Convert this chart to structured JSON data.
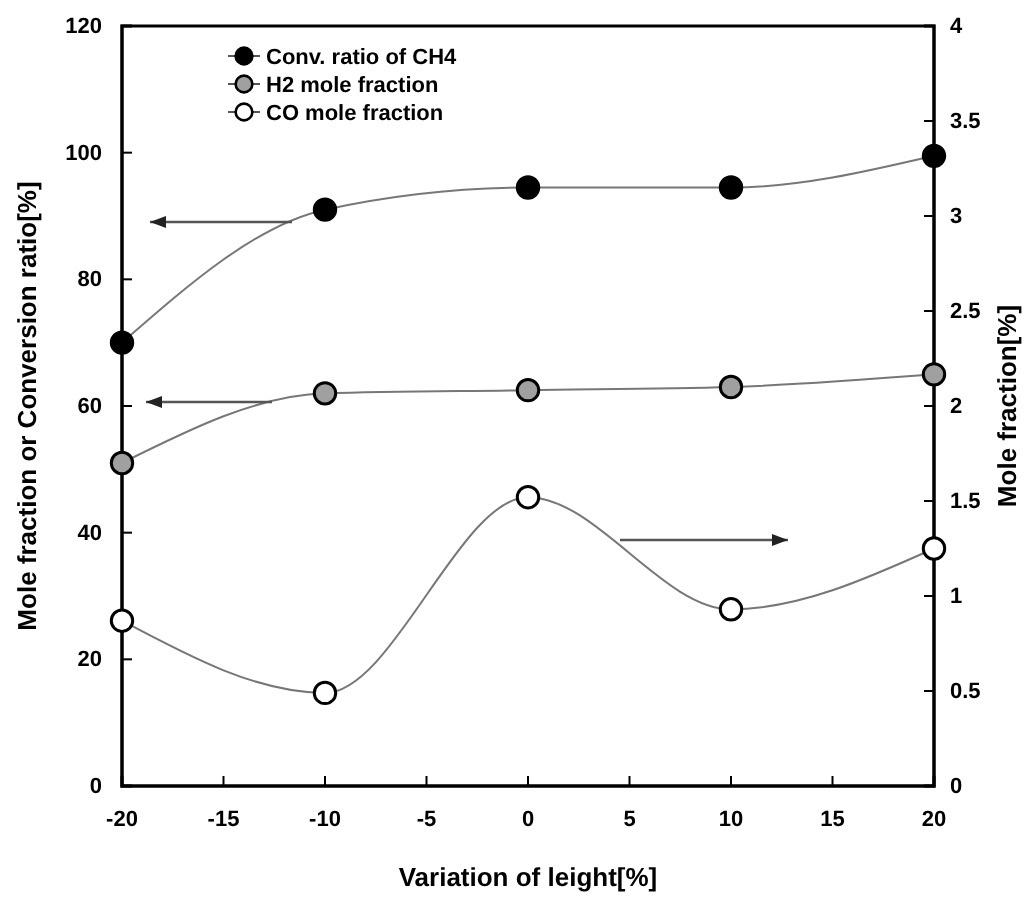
{
  "chart_data": {
    "type": "line",
    "xlabel": "Variation of leight[%]",
    "ylabel": "Mole fraction or Conversion ratio[%]",
    "y2label": "Mole fraction[%]",
    "x": [
      -20,
      -10,
      0,
      10,
      20
    ],
    "xlim": [
      -20,
      20
    ],
    "xticks": [
      -20,
      -15,
      -10,
      -5,
      0,
      5,
      10,
      15,
      20
    ],
    "ylim": [
      0,
      120
    ],
    "yticks": [
      0,
      20,
      40,
      60,
      80,
      100,
      120
    ],
    "y2lim": [
      0,
      4
    ],
    "y2ticks": [
      0,
      0.5,
      1,
      1.5,
      2,
      2.5,
      3,
      3.5,
      4
    ],
    "marker": "circle",
    "legend": "top left",
    "grid": false,
    "series": [
      {
        "name": "Conv. ratio of CH4",
        "color": "#000000",
        "values": [
          70,
          91,
          94.5,
          94.5,
          99.5
        ]
      },
      {
        "name": "H2 mole fraction",
        "color": "#a0a0a0",
        "values": [
          51,
          62,
          62.5,
          63,
          65
        ]
      },
      {
        "name": "CO mole fraction",
        "color": "#ffffff",
        "axis": "y2",
        "values": [
          0.87,
          0.49,
          1.52,
          0.93,
          1.25
        ]
      }
    ]
  }
}
